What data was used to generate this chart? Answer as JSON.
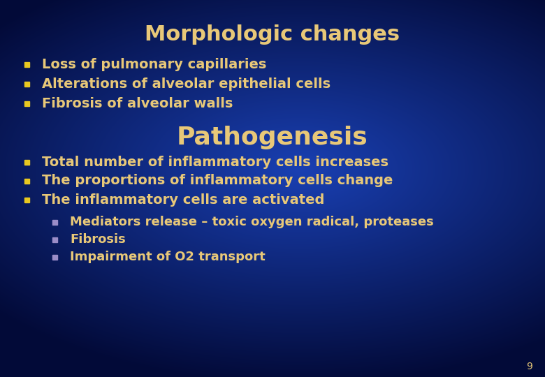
{
  "title": "Morphologic changes",
  "section2_title": "Pathogenesis",
  "title_color": "#e8c878",
  "text_color": "#e8c878",
  "bullet_color": "#e8c820",
  "sub_bullet_color": "#9b8dc8",
  "page_number": "9",
  "bullet1": [
    "Loss of pulmonary capillaries",
    "Alterations of alveolar epithelial cells",
    "Fibrosis of alveolar walls"
  ],
  "bullet2": [
    "Total number of inflammatory cells increases",
    "The proportions of inflammatory cells change",
    "The inflammatory cells are activated"
  ],
  "sub_bullets": [
    "Mediators release – toxic oxygen radical, proteases",
    "Fibrosis",
    "Impairment of O2 transport"
  ],
  "title_fontsize": 22,
  "section_fontsize": 26,
  "bullet_fontsize": 14,
  "sub_bullet_fontsize": 13,
  "page_num_fontsize": 10,
  "bg_dark": "#020a3a",
  "bg_mid": "#1a3aaa",
  "bg_bright": "#2244cc"
}
